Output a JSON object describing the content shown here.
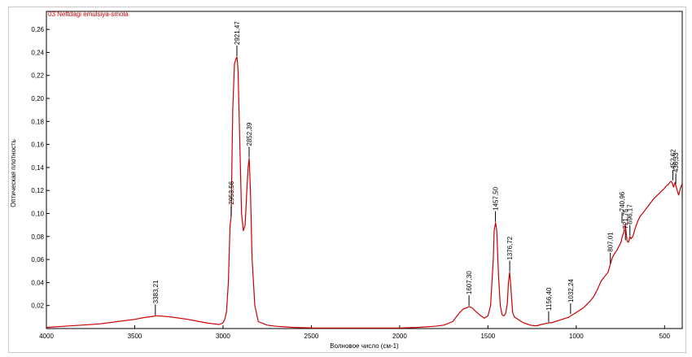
{
  "chart_data": {
    "type": "line",
    "title": "03 Neftdagi emulsiya-smola",
    "xlabel": "Волновое число (см-1)",
    "ylabel": "Оптическая плотность",
    "xlim": [
      4000,
      400
    ],
    "ylim": [
      0,
      0.27
    ],
    "x_ticks": [
      4000,
      3500,
      3000,
      2500,
      2000,
      1500,
      1000,
      500
    ],
    "x_tick_labels": [
      "4000",
      "3500",
      "3000",
      "2500",
      "2000",
      "1500",
      "1000",
      "500"
    ],
    "y_ticks": [
      0.02,
      0.04,
      0.06,
      0.08,
      0.1,
      0.12,
      0.14,
      0.16,
      0.18,
      0.2,
      0.22,
      0.24,
      0.26
    ],
    "y_tick_labels": [
      "0,02",
      "0,04",
      "0,06",
      "0,08",
      "0,10",
      "0,12",
      "0,14",
      "0,16",
      "0,18",
      "0,20",
      "0,22",
      "0,24",
      "0,26"
    ],
    "grid": false,
    "series_color": "#cc0000",
    "title_color": "#cc0000",
    "series": [
      {
        "x": [
          4000,
          3900,
          3800,
          3700,
          3600,
          3500,
          3450,
          3400,
          3383,
          3350,
          3300,
          3200,
          3100,
          3050,
          3020,
          3000,
          2990,
          2980,
          2970,
          2960,
          2954,
          2945,
          2935,
          2925,
          2921,
          2915,
          2905,
          2895,
          2885,
          2875,
          2865,
          2858,
          2852,
          2845,
          2835,
          2820,
          2800,
          2750,
          2700,
          2600,
          2500,
          2400,
          2300,
          2200,
          2100,
          2000,
          1900,
          1800,
          1750,
          1700,
          1680,
          1660,
          1640,
          1620,
          1607,
          1590,
          1570,
          1540,
          1520,
          1500,
          1485,
          1470,
          1465,
          1457,
          1450,
          1440,
          1430,
          1420,
          1410,
          1400,
          1390,
          1384,
          1377,
          1370,
          1360,
          1350,
          1340,
          1320,
          1300,
          1280,
          1260,
          1240,
          1220,
          1200,
          1180,
          1170,
          1156,
          1140,
          1120,
          1100,
          1080,
          1060,
          1040,
          1032,
          1020,
          1000,
          980,
          960,
          940,
          920,
          900,
          880,
          860,
          840,
          820,
          807,
          795,
          780,
          770,
          760,
          750,
          745,
          741,
          737,
          732,
          726,
          722,
          718,
          712,
          705,
          700,
          696,
          690,
          680,
          670,
          660,
          650,
          640,
          620,
          600,
          580,
          560,
          540,
          520,
          500,
          490,
          480,
          470,
          462,
          455,
          452,
          448,
          445,
          440,
          436,
          430,
          425,
          420,
          415,
          410,
          405,
          400
        ],
        "y": [
          0.001,
          0.002,
          0.003,
          0.004,
          0.006,
          0.008,
          0.0095,
          0.0105,
          0.011,
          0.0108,
          0.0102,
          0.008,
          0.005,
          0.004,
          0.0035,
          0.005,
          0.008,
          0.015,
          0.04,
          0.09,
          0.097,
          0.19,
          0.23,
          0.235,
          0.236,
          0.225,
          0.16,
          0.1,
          0.085,
          0.09,
          0.12,
          0.14,
          0.148,
          0.12,
          0.06,
          0.02,
          0.006,
          0.003,
          0.002,
          0.001,
          0.0005,
          0.0005,
          0.0005,
          0.0005,
          0.0005,
          0.0005,
          0.001,
          0.002,
          0.003,
          0.006,
          0.01,
          0.014,
          0.017,
          0.018,
          0.019,
          0.018,
          0.015,
          0.011,
          0.009,
          0.011,
          0.02,
          0.06,
          0.085,
          0.092,
          0.085,
          0.045,
          0.02,
          0.012,
          0.011,
          0.013,
          0.022,
          0.04,
          0.049,
          0.035,
          0.014,
          0.01,
          0.009,
          0.007,
          0.005,
          0.004,
          0.003,
          0.0025,
          0.0025,
          0.0035,
          0.004,
          0.0045,
          0.005,
          0.005,
          0.006,
          0.007,
          0.008,
          0.009,
          0.01,
          0.011,
          0.012,
          0.014,
          0.016,
          0.018,
          0.021,
          0.024,
          0.028,
          0.034,
          0.041,
          0.045,
          0.049,
          0.056,
          0.062,
          0.066,
          0.068,
          0.071,
          0.074,
          0.076,
          0.079,
          0.081,
          0.083,
          0.088,
          0.091,
          0.084,
          0.076,
          0.075,
          0.077,
          0.08,
          0.078,
          0.08,
          0.085,
          0.09,
          0.094,
          0.097,
          0.101,
          0.105,
          0.109,
          0.113,
          0.116,
          0.119,
          0.122,
          0.124,
          0.125,
          0.127,
          0.128,
          0.126,
          0.124,
          0.123,
          0.125,
          0.127,
          0.124,
          0.121,
          0.118,
          0.116,
          0.119,
          0.122,
          0.124,
          0.126
        ]
      }
    ],
    "peak_annotations": [
      {
        "label": "3383,21",
        "x": 3383.21,
        "y": 0.011
      },
      {
        "label": "2953,56",
        "x": 2953.56,
        "y": 0.097
      },
      {
        "label": "2921,47",
        "x": 2921.47,
        "y": 0.236
      },
      {
        "label": "2852,39",
        "x": 2852.39,
        "y": 0.148
      },
      {
        "label": "1607,30",
        "x": 1607.3,
        "y": 0.019
      },
      {
        "label": "1457,50",
        "x": 1457.5,
        "y": 0.092
      },
      {
        "label": "1376,72",
        "x": 1376.72,
        "y": 0.049
      },
      {
        "label": "1156,40",
        "x": 1156.4,
        "y": 0.005
      },
      {
        "label": "1032,24",
        "x": 1032.24,
        "y": 0.012
      },
      {
        "label": "807,01",
        "x": 807.01,
        "y": 0.056
      },
      {
        "label": "740,96",
        "x": 740.96,
        "y": 0.091
      },
      {
        "label": "721,75",
        "x": 721.75,
        "y": 0.076
      },
      {
        "label": "696,17",
        "x": 696.17,
        "y": 0.08
      },
      {
        "label": "452,62",
        "x": 452.62,
        "y": 0.128
      },
      {
        "label": "436,33",
        "x": 436.33,
        "y": 0.125
      }
    ]
  }
}
